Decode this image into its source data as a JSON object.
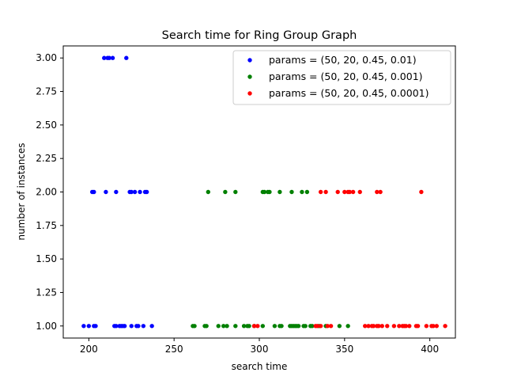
{
  "chart_data": {
    "type": "scatter",
    "title": "Search time for Ring Group Graph",
    "xlabel": "search time",
    "ylabel": "number of instances",
    "xlim": [
      185,
      415
    ],
    "ylim": [
      0.91,
      3.09
    ],
    "xticks": [
      200,
      250,
      300,
      350,
      400
    ],
    "xtick_labels": [
      "200",
      "250",
      "300",
      "350",
      "400"
    ],
    "yticks": [
      1.0,
      1.25,
      1.5,
      1.75,
      2.0,
      2.25,
      2.5,
      2.75,
      3.0
    ],
    "ytick_labels": [
      "1.00",
      "1.25",
      "1.50",
      "1.75",
      "2.00",
      "2.25",
      "2.50",
      "2.75",
      "3.00"
    ],
    "grid": false,
    "legend_position": "top-right",
    "series": [
      {
        "name": "params = (50, 20, 0.45, 0.01)",
        "color": "#0000ff",
        "points": [
          [
            209,
            3
          ],
          [
            211,
            3
          ],
          [
            212,
            3
          ],
          [
            214,
            3
          ],
          [
            222,
            3
          ],
          [
            202,
            2
          ],
          [
            203,
            2
          ],
          [
            210,
            2
          ],
          [
            216,
            2
          ],
          [
            224,
            2
          ],
          [
            225,
            2
          ],
          [
            227,
            2
          ],
          [
            230,
            2
          ],
          [
            233,
            2
          ],
          [
            234,
            2
          ],
          [
            197,
            1
          ],
          [
            200,
            1
          ],
          [
            203,
            1
          ],
          [
            204,
            1
          ],
          [
            215,
            1
          ],
          [
            216,
            1
          ],
          [
            218,
            1
          ],
          [
            219,
            1
          ],
          [
            220,
            1
          ],
          [
            221,
            1
          ],
          [
            225,
            1
          ],
          [
            228,
            1
          ],
          [
            229,
            1
          ],
          [
            232,
            1
          ],
          [
            237,
            1
          ]
        ]
      },
      {
        "name": "params = (50, 20, 0.45, 0.001)",
        "color": "#008000",
        "points": [
          [
            270,
            2
          ],
          [
            280,
            2
          ],
          [
            286,
            2
          ],
          [
            302,
            2
          ],
          [
            303,
            2
          ],
          [
            305,
            2
          ],
          [
            306,
            2
          ],
          [
            312,
            2
          ],
          [
            319,
            2
          ],
          [
            325,
            2
          ],
          [
            328,
            2
          ],
          [
            261,
            1
          ],
          [
            262,
            1
          ],
          [
            268,
            1
          ],
          [
            269,
            1
          ],
          [
            276,
            1
          ],
          [
            279,
            1
          ],
          [
            281,
            1
          ],
          [
            286,
            1
          ],
          [
            291,
            1
          ],
          [
            293,
            1
          ],
          [
            294,
            1
          ],
          [
            297,
            1
          ],
          [
            302,
            1
          ],
          [
            309,
            1
          ],
          [
            312,
            1
          ],
          [
            313,
            1
          ],
          [
            318,
            1
          ],
          [
            319,
            1
          ],
          [
            320,
            1
          ],
          [
            321,
            1
          ],
          [
            322,
            1
          ],
          [
            323,
            1
          ],
          [
            326,
            1
          ],
          [
            327,
            1
          ],
          [
            330,
            1
          ],
          [
            331,
            1
          ],
          [
            335,
            1
          ],
          [
            339,
            1
          ],
          [
            347,
            1
          ],
          [
            352,
            1
          ]
        ]
      },
      {
        "name": "params = (50, 20, 0.45, 0.0001)",
        "color": "#ff0000",
        "points": [
          [
            336,
            2
          ],
          [
            339,
            2
          ],
          [
            346,
            2
          ],
          [
            350,
            2
          ],
          [
            352,
            2
          ],
          [
            353,
            2
          ],
          [
            355,
            2
          ],
          [
            359,
            2
          ],
          [
            369,
            2
          ],
          [
            371,
            2
          ],
          [
            395,
            2
          ],
          [
            297,
            1
          ],
          [
            299,
            1
          ],
          [
            333,
            1
          ],
          [
            334,
            1
          ],
          [
            336,
            1
          ],
          [
            340,
            1
          ],
          [
            342,
            1
          ],
          [
            362,
            1
          ],
          [
            364,
            1
          ],
          [
            366,
            1
          ],
          [
            367,
            1
          ],
          [
            369,
            1
          ],
          [
            370,
            1
          ],
          [
            372,
            1
          ],
          [
            375,
            1
          ],
          [
            379,
            1
          ],
          [
            382,
            1
          ],
          [
            384,
            1
          ],
          [
            385,
            1
          ],
          [
            386,
            1
          ],
          [
            388,
            1
          ],
          [
            392,
            1
          ],
          [
            393,
            1
          ],
          [
            398,
            1
          ],
          [
            401,
            1
          ],
          [
            402,
            1
          ],
          [
            404,
            1
          ],
          [
            409,
            1
          ]
        ]
      }
    ]
  }
}
